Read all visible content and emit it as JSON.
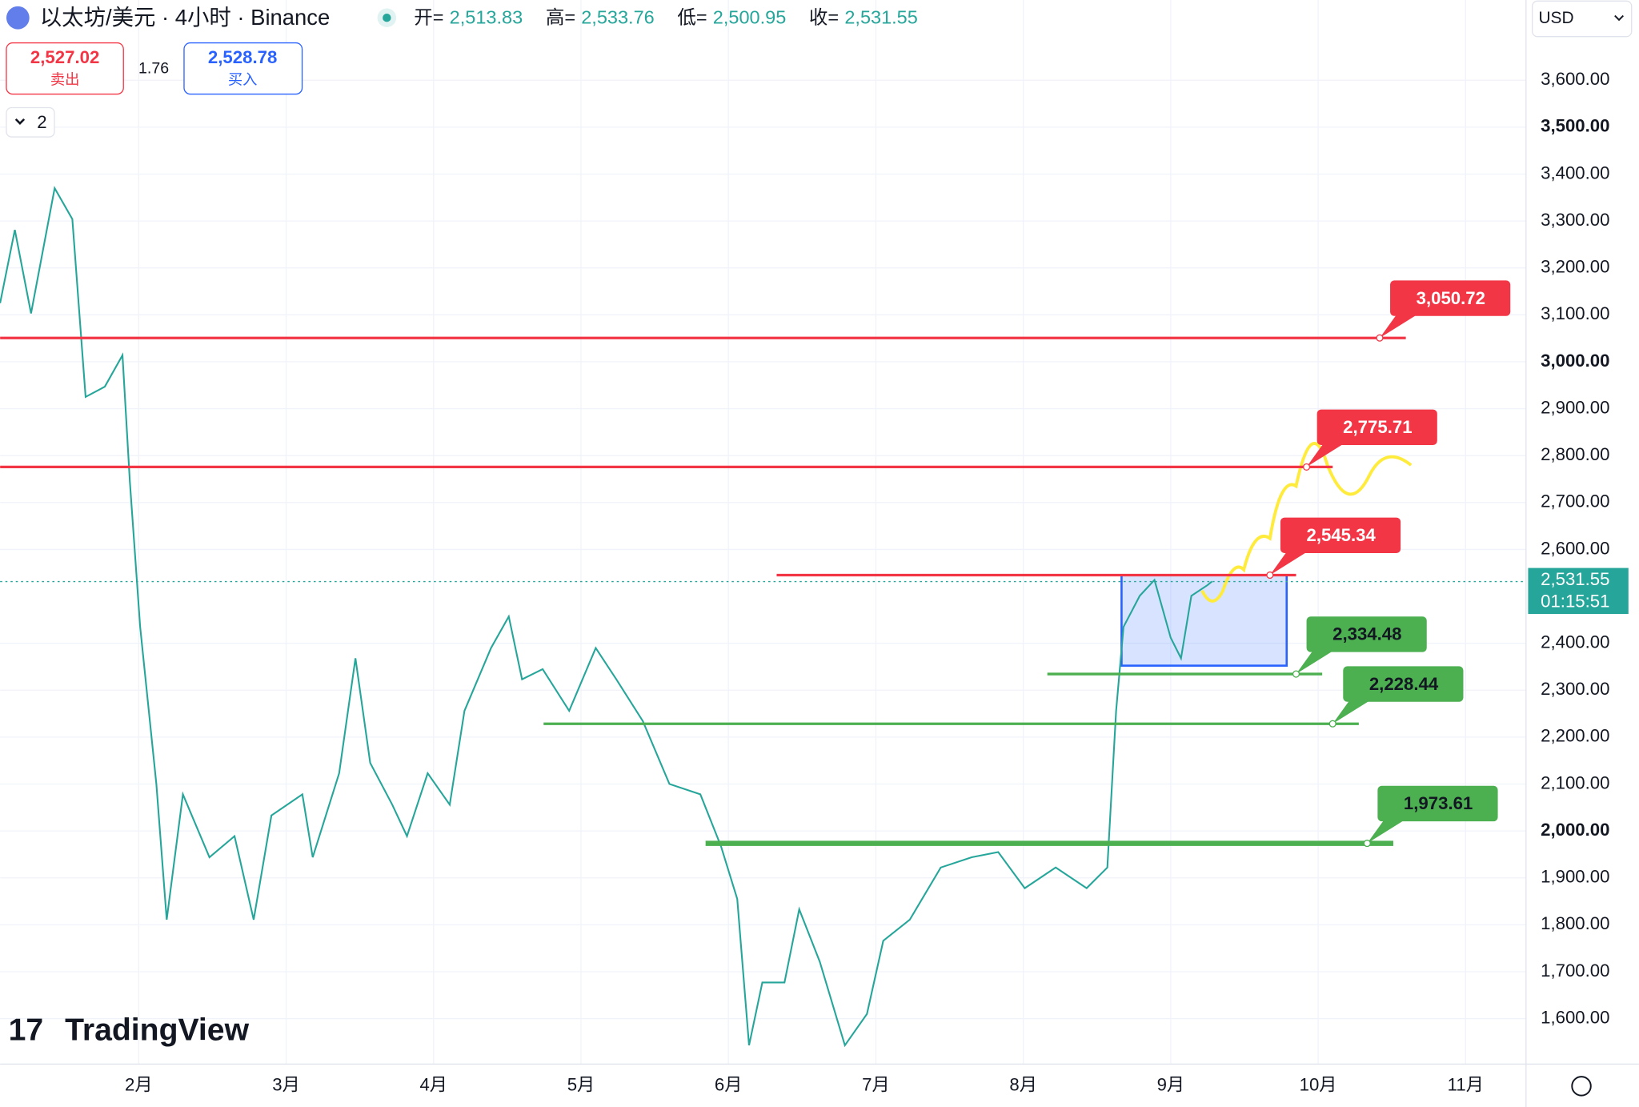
{
  "header": {
    "symbol": "以太坊/美元 · 4小时 · Binance",
    "ohlc": [
      {
        "label": "开=",
        "value": "2,513.83"
      },
      {
        "label": "高=",
        "value": "2,533.76"
      },
      {
        "label": "低=",
        "value": "2,500.95"
      },
      {
        "label": "收=",
        "value": "2,531.55"
      }
    ],
    "sell": {
      "price": "2,527.02",
      "label": "卖出"
    },
    "spread": "1.76",
    "buy": {
      "price": "2,528.78",
      "label": "买入"
    },
    "indicators": "2",
    "currency": "USD",
    "logo": "TradingView"
  },
  "chart_data": {
    "type": "line",
    "series": [
      {
        "name": "ETH/USD",
        "color": "#26a69a",
        "x": [
          1.06,
          1.16,
          1.27,
          1.43,
          1.55,
          1.64,
          1.77,
          1.89,
          1.94,
          2.01,
          2.12,
          2.19,
          2.3,
          2.48,
          2.65,
          2.78,
          2.9,
          3.11,
          3.18,
          3.36,
          3.47,
          3.57,
          3.72,
          3.82,
          3.96,
          4.11,
          4.21,
          4.39,
          4.51,
          4.6,
          4.74,
          4.92,
          5.1,
          5.24,
          5.42,
          5.6,
          5.81,
          5.95,
          6.06,
          6.14,
          6.23,
          6.38,
          6.48,
          6.62,
          6.79,
          6.94,
          7.05,
          7.23,
          7.44,
          7.65,
          7.83,
          8.01,
          8.22,
          8.43,
          8.57,
          8.63,
          8.68,
          8.79,
          8.89,
          9.0,
          9.07,
          9.14,
          9.25,
          9.28
        ],
        "values": [
          3125,
          3281,
          3103,
          3370,
          3304,
          2925,
          2947,
          3014,
          2746,
          2435,
          2100,
          1811,
          2078,
          1944,
          1989,
          1811,
          2033,
          2078,
          1944,
          2123,
          2368,
          2145,
          2056,
          1989,
          2123,
          2056,
          2256,
          2390,
          2457,
          2323,
          2345,
          2256,
          2390,
          2323,
          2234,
          2100,
          2078,
          1967,
          1855,
          1543,
          1677,
          1677,
          1833,
          1721,
          1543,
          1610,
          1766,
          1811,
          1922,
          1944,
          1955,
          1878,
          1922,
          1878,
          1922,
          2256,
          2435,
          2501,
          2535,
          2412,
          2368,
          2501,
          2524,
          2531.55
        ]
      }
    ],
    "xlim": [
      1.06,
      11.41
    ],
    "xticks": [
      {
        "value": 2,
        "label": "2月"
      },
      {
        "value": 3,
        "label": "3月"
      },
      {
        "value": 4,
        "label": "4月"
      },
      {
        "value": 5,
        "label": "5月"
      },
      {
        "value": 6,
        "label": "6月"
      },
      {
        "value": 7,
        "label": "7月"
      },
      {
        "value": 8,
        "label": "8月"
      },
      {
        "value": 9,
        "label": "9月"
      },
      {
        "value": 10,
        "label": "10月"
      },
      {
        "value": 11,
        "label": "11月"
      }
    ],
    "ylim": [
      1503,
      3771
    ],
    "yticks": [
      {
        "value": 1600,
        "label": "1,600.00"
      },
      {
        "value": 1700,
        "label": "1,700.00"
      },
      {
        "value": 1800,
        "label": "1,800.00"
      },
      {
        "value": 1900,
        "label": "1,900.00"
      },
      {
        "value": 2000,
        "label": "2,000.00"
      },
      {
        "value": 2100,
        "label": "2,100.00"
      },
      {
        "value": 2200,
        "label": "2,200.00"
      },
      {
        "value": 2300,
        "label": "2,300.00"
      },
      {
        "value": 2400,
        "label": "2,400.00"
      },
      {
        "value": 2600,
        "label": "2,600.00"
      },
      {
        "value": 2700,
        "label": "2,700.00"
      },
      {
        "value": 2800,
        "label": "2,800.00"
      },
      {
        "value": 2900,
        "label": "2,900.00"
      },
      {
        "value": 3000,
        "label": "3,000.00"
      },
      {
        "value": 3100,
        "label": "3,100.00"
      },
      {
        "value": 3200,
        "label": "3,200.00"
      },
      {
        "value": 3300,
        "label": "3,300.00"
      },
      {
        "value": 3400,
        "label": "3,400.00"
      },
      {
        "value": 3500,
        "label": "3,500.00"
      },
      {
        "value": 3600,
        "label": "3,600.00"
      }
    ],
    "grid": true,
    "levels": [
      {
        "value": 3050.72,
        "label": "3,050.72",
        "color": "#f23645"
      },
      {
        "value": 2775.71,
        "label": "2,775.71",
        "color": "#f23645"
      },
      {
        "value": 2545.34,
        "label": "2,545.34",
        "color": "#f23645"
      },
      {
        "value": 2334.48,
        "label": "2,334.48",
        "color": "#4caf50"
      },
      {
        "value": 2228.44,
        "label": "2,228.44",
        "color": "#4caf50"
      },
      {
        "value": 1973.61,
        "label": "1,973.61",
        "color": "#4caf50"
      }
    ],
    "last_price": {
      "value": 2531.55,
      "label": "2,531.55",
      "countdown": "01:15:51",
      "color": "#26a69a"
    }
  }
}
